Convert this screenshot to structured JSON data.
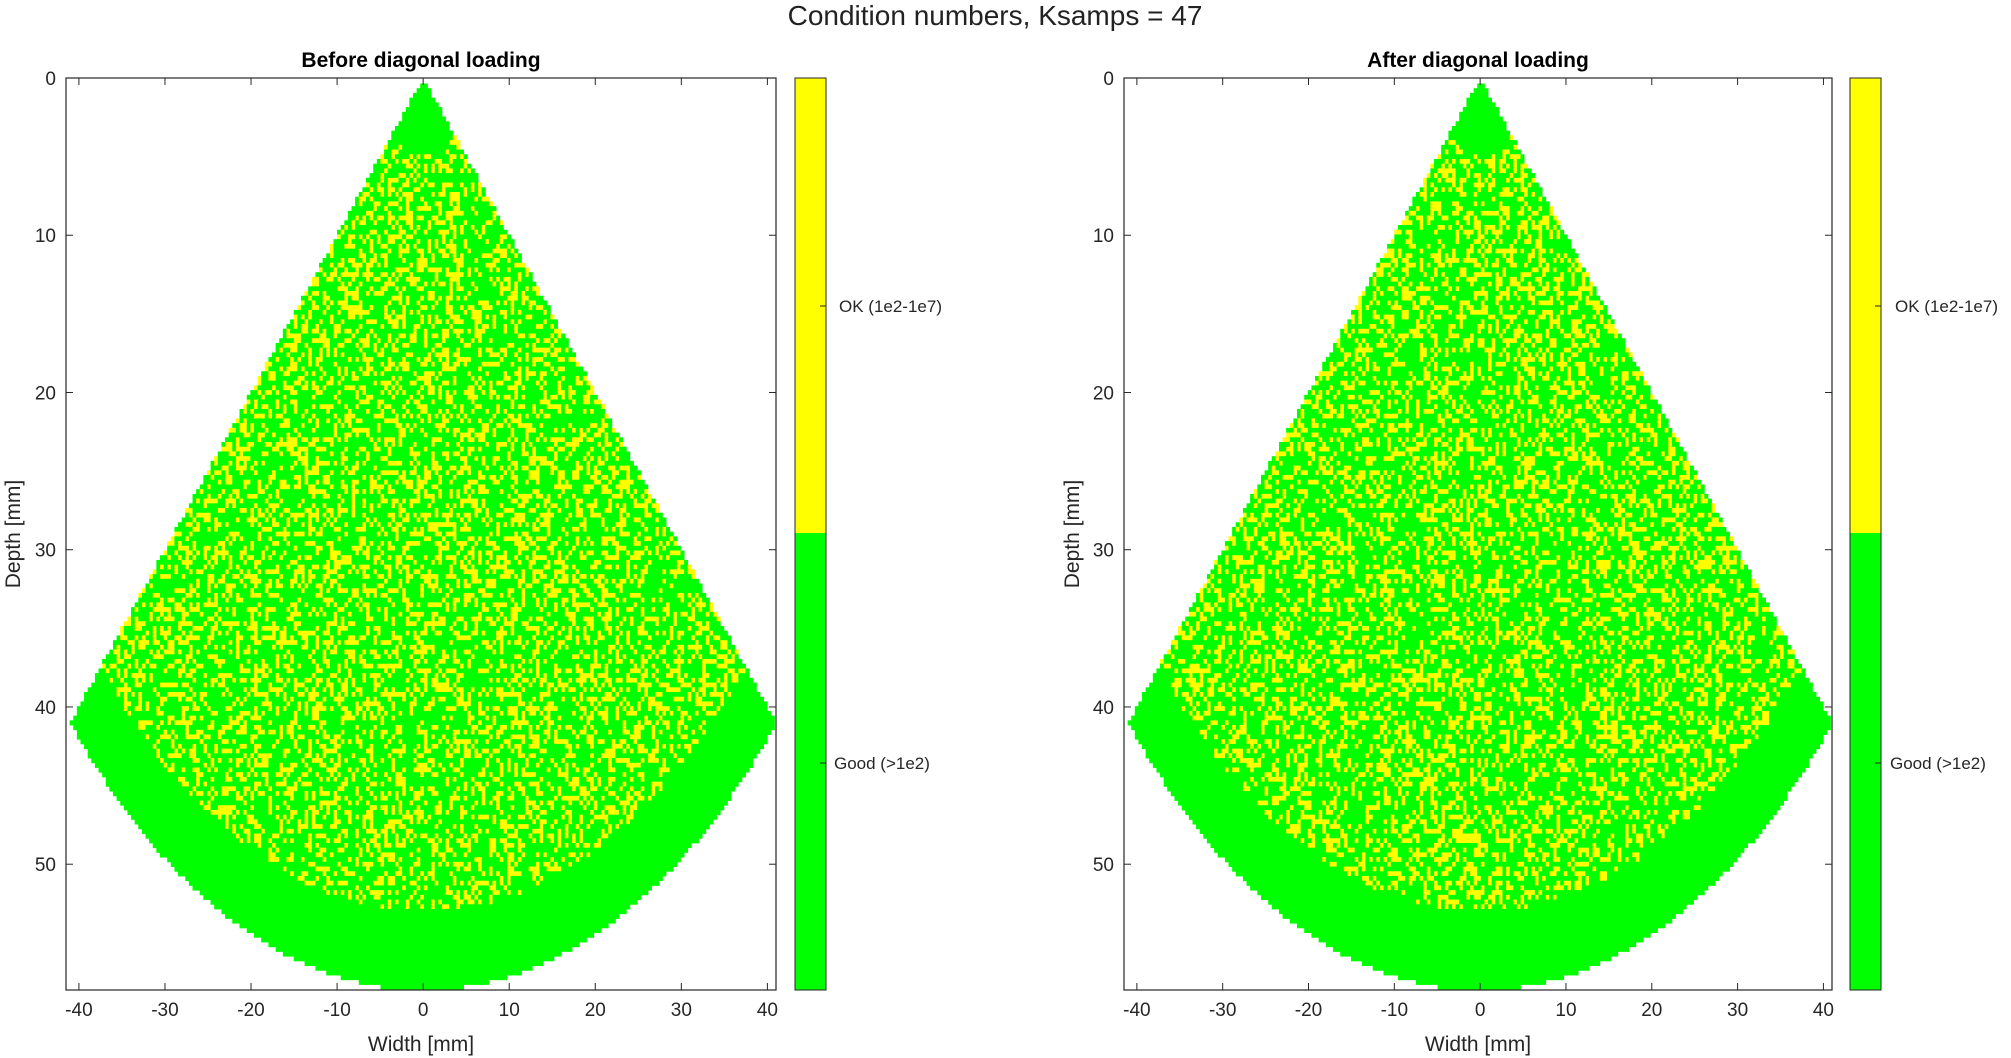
{
  "figure": {
    "title": "Condition numbers, Ksamps = 47"
  },
  "colors": {
    "good": "#00ff00",
    "ok": "#ffff00",
    "axis": "#262626",
    "background": "#ffffff"
  },
  "chart_data": [
    {
      "type": "heatmap",
      "title": "Before diagonal loading",
      "xlabel": "Width [mm]",
      "ylabel": "Depth [mm]",
      "xlim": [
        -41.5,
        41
      ],
      "ylim": [
        0,
        58
      ],
      "y_reversed": true,
      "xticks": [
        -40,
        -30,
        -20,
        -10,
        0,
        10,
        20,
        30,
        40
      ],
      "yticks": [
        0,
        10,
        20,
        30,
        40,
        50
      ],
      "sector": {
        "apex": [
          0,
          0
        ],
        "half_angle_deg": 45,
        "max_radius": 58,
        "inner_solid_region_radius": [
          0,
          5
        ],
        "outer_solid_band_radius": [
          53,
          58
        ]
      },
      "colorbar": {
        "classes": [
          {
            "label": "Good (>1e2)",
            "color": "#00ff00",
            "fraction": 0.52
          },
          {
            "label": "OK (1e2-1e7)",
            "color": "#ffff00",
            "fraction": 0.48
          }
        ]
      }
    },
    {
      "type": "heatmap",
      "title": "After diagonal loading",
      "xlabel": "Width [mm]",
      "ylabel": "Depth [mm]",
      "xlim": [
        -41.5,
        41
      ],
      "ylim": [
        0,
        58
      ],
      "y_reversed": true,
      "xticks": [
        -40,
        -30,
        -20,
        -10,
        0,
        10,
        20,
        30,
        40
      ],
      "yticks": [
        0,
        10,
        20,
        30,
        40,
        50
      ],
      "sector": {
        "apex": [
          0,
          0
        ],
        "half_angle_deg": 45,
        "max_radius": 58,
        "inner_solid_region_radius": [
          0,
          5
        ],
        "outer_solid_band_radius": [
          53,
          58
        ]
      },
      "colorbar": {
        "classes": [
          {
            "label": "Good (>1e2)",
            "color": "#00ff00",
            "fraction": 0.52
          },
          {
            "label": "OK (1e2-1e7)",
            "color": "#ffff00",
            "fraction": 0.48
          }
        ]
      }
    }
  ]
}
